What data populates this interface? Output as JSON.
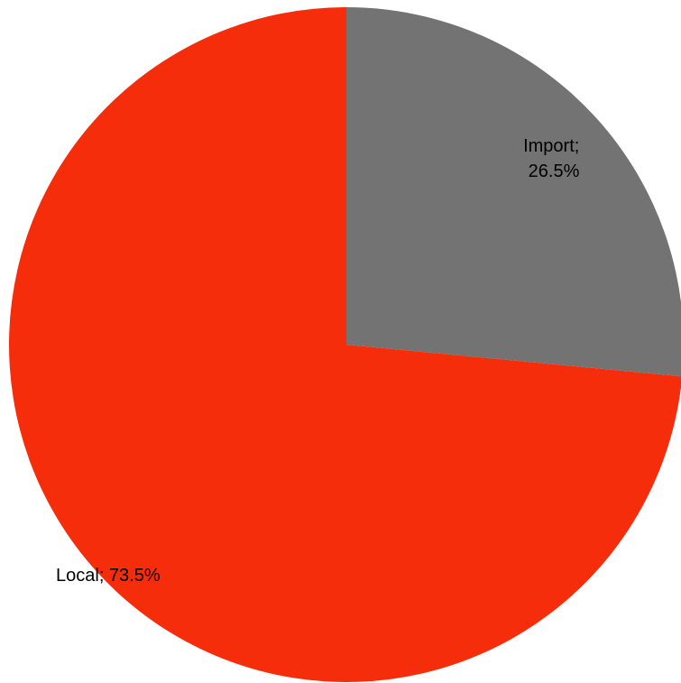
{
  "chart_data": {
    "type": "pie",
    "title": "",
    "slices": [
      {
        "label": "Import",
        "value": 26.5,
        "display": "26.5%",
        "color": "#737373"
      },
      {
        "label": "Local",
        "value": 73.5,
        "display": "73.5%",
        "color": "#f52d0a"
      }
    ],
    "start_angle": "12 o'clock",
    "direction": "clockwise",
    "legend": "none",
    "data_labels": "category; percentage"
  }
}
